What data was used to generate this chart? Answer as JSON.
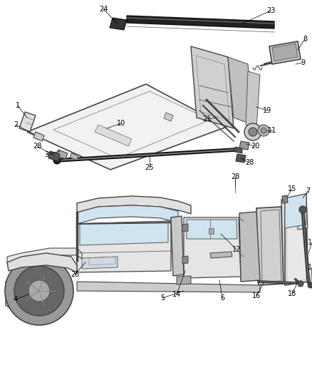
{
  "bg_color": "#ffffff",
  "line_color": "#333333",
  "fig_width": 4.38,
  "fig_height": 5.33,
  "font_size": 7.0
}
